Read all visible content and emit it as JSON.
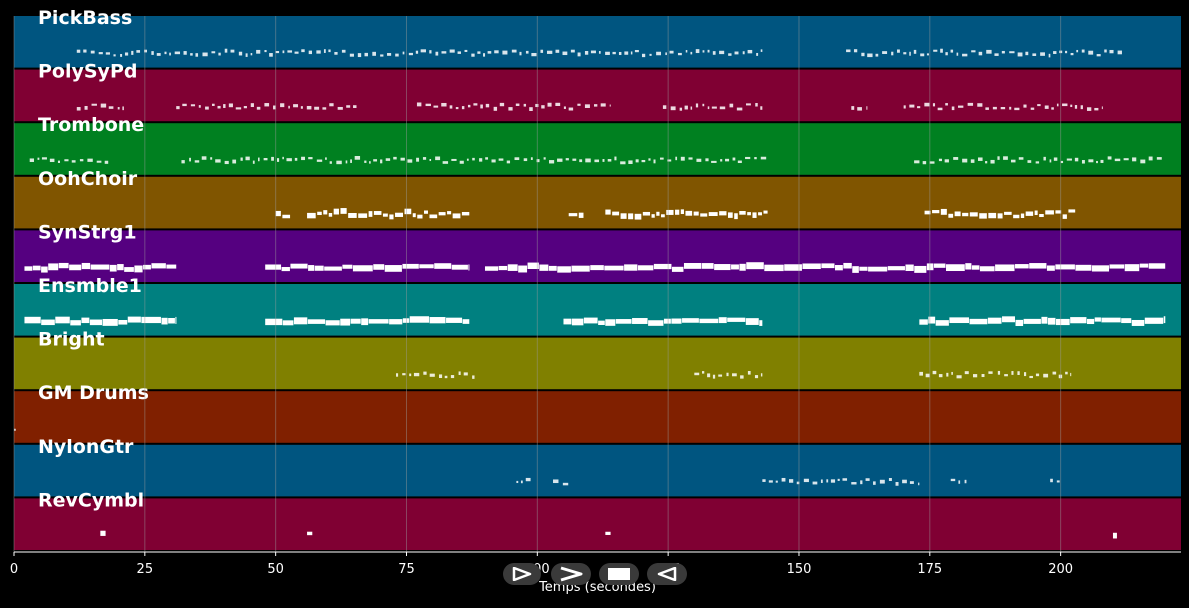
{
  "colors": {
    "background": "#000000",
    "grid": "#9a9a9a",
    "note": "#ffffff",
    "axis_text": "#ffffff",
    "transport_bg": "#3a3a3a"
  },
  "axis": {
    "xlabel": "Temps (secondes)",
    "xlim": [
      0,
      223
    ],
    "ticks": [
      0,
      25,
      50,
      75,
      100,
      125,
      150,
      175,
      200
    ]
  },
  "transport": {
    "buttons": [
      {
        "name": "play-icon"
      },
      {
        "name": "fast-forward-icon"
      },
      {
        "name": "stop-icon"
      },
      {
        "name": "rewind-icon"
      }
    ]
  },
  "chart_data": {
    "type": "piano-roll",
    "xlabel": "Temps (secondes)",
    "xlim": [
      0,
      223
    ],
    "grid": true,
    "tracks": [
      {
        "name": "PickBass",
        "color": "#005580",
        "style": "dash",
        "segments": [
          [
            12,
            143
          ],
          [
            159,
            212
          ]
        ]
      },
      {
        "name": "PolySyPd",
        "color": "#800033",
        "style": "dash",
        "segments": [
          [
            12,
            21
          ],
          [
            31,
            66
          ],
          [
            77,
            114
          ],
          [
            124,
            143
          ],
          [
            160,
            163
          ],
          [
            170,
            208
          ]
        ]
      },
      {
        "name": "Trombone",
        "color": "#008020",
        "style": "dash",
        "segments": [
          [
            3,
            18
          ],
          [
            32,
            144
          ],
          [
            172,
            220
          ]
        ]
      },
      {
        "name": "OohChoir",
        "color": "#805500",
        "style": "block",
        "segments": [
          [
            50,
            53
          ],
          [
            56,
            87
          ],
          [
            106,
            109
          ],
          [
            113,
            144
          ],
          [
            174,
            203
          ]
        ]
      },
      {
        "name": "SynStrg1",
        "color": "#550080",
        "style": "bar",
        "segments": [
          [
            2,
            31
          ],
          [
            48,
            87
          ],
          [
            90,
            220
          ]
        ]
      },
      {
        "name": "Ensmble1",
        "color": "#008080",
        "style": "bar",
        "segments": [
          [
            2,
            31
          ],
          [
            48,
            87
          ],
          [
            105,
            143
          ],
          [
            173,
            220
          ]
        ]
      },
      {
        "name": "Bright",
        "color": "#808000",
        "style": "dash",
        "segments": [
          [
            73,
            88
          ],
          [
            130,
            143
          ],
          [
            173,
            187
          ],
          [
            188,
            202
          ]
        ]
      },
      {
        "name": "GM Drums",
        "color": "#802000",
        "style": "dash",
        "segments": [
          [
            0,
            1
          ]
        ]
      },
      {
        "name": "NylonGtr",
        "color": "#005580",
        "style": "dash",
        "segments": [
          [
            96,
            99
          ],
          [
            103,
            106
          ],
          [
            143,
            173
          ],
          [
            179,
            182
          ],
          [
            198,
            200
          ]
        ]
      },
      {
        "name": "RevCymbl",
        "color": "#800033",
        "style": "block",
        "segments": [
          [
            16.5,
            17.5
          ],
          [
            56,
            57
          ],
          [
            113,
            114
          ],
          [
            210,
            211
          ]
        ]
      }
    ]
  }
}
